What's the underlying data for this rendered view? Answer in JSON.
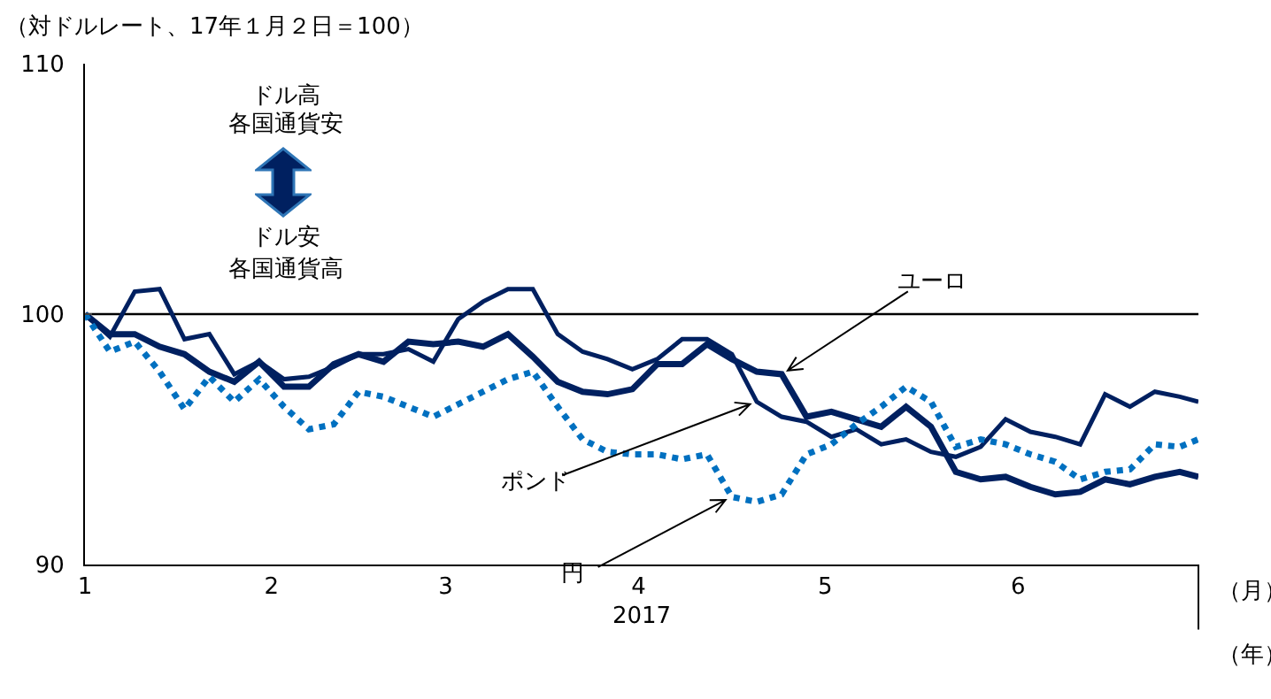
{
  "chart_data": {
    "type": "line",
    "ylabel": "（対ドルレート、17年１月２日＝100）",
    "xlabel": "2017",
    "annotations": [
      "ドル高",
      "各国通貨安",
      "ドル安",
      "各国通貨高",
      "（月）",
      "（年）"
    ],
    "x": [
      "2017-01-02",
      "2017-01-06",
      "2017-01-10",
      "2017-01-14",
      "2017-01-18",
      "2017-01-22",
      "2017-01-26",
      "2017-01-30",
      "2017-02-03",
      "2017-02-07",
      "2017-02-11",
      "2017-02-15",
      "2017-02-19",
      "2017-02-23",
      "2017-02-27",
      "2017-03-03",
      "2017-03-07",
      "2017-03-11",
      "2017-03-15",
      "2017-03-19",
      "2017-03-23",
      "2017-03-27",
      "2017-03-31",
      "2017-04-04",
      "2017-04-08",
      "2017-04-12",
      "2017-04-16",
      "2017-04-20",
      "2017-04-24",
      "2017-04-28",
      "2017-05-02",
      "2017-05-06",
      "2017-05-10",
      "2017-05-14",
      "2017-05-18",
      "2017-05-22",
      "2017-05-26",
      "2017-05-30",
      "2017-06-03",
      "2017-06-07",
      "2017-06-11",
      "2017-06-15",
      "2017-06-19",
      "2017-06-23",
      "2017-06-27",
      "2017-06-30"
    ],
    "series": [
      {
        "name": "ユーロ",
        "color": "#002060",
        "values": [
          100.0,
          99.2,
          99.2,
          98.7,
          98.4,
          97.7,
          97.3,
          98.1,
          97.1,
          97.1,
          98.0,
          98.4,
          98.1,
          98.9,
          98.8,
          98.9,
          98.7,
          99.2,
          98.3,
          97.3,
          96.9,
          96.8,
          97.0,
          98.0,
          98.0,
          98.8,
          98.2,
          97.7,
          97.6,
          95.9,
          96.1,
          95.8,
          95.5,
          96.3,
          95.5,
          93.7,
          93.4,
          93.5,
          93.1,
          92.8,
          92.9,
          93.4,
          93.2,
          93.5,
          93.7,
          93.5
        ]
      },
      {
        "name": "ポンド",
        "color": "#002060",
        "values": [
          100.0,
          99.1,
          100.9,
          101.0,
          99.0,
          99.2,
          97.6,
          98.1,
          97.4,
          97.5,
          97.9,
          98.4,
          98.4,
          98.6,
          98.1,
          99.8,
          100.5,
          101.0,
          101.0,
          99.2,
          98.5,
          98.2,
          97.8,
          98.2,
          99.0,
          99.0,
          98.4,
          96.5,
          95.9,
          95.7,
          95.1,
          95.4,
          94.8,
          95.0,
          94.5,
          94.3,
          94.7,
          95.8,
          95.3,
          95.1,
          94.8,
          96.8,
          96.3,
          96.9,
          96.7,
          96.5
        ]
      },
      {
        "name": "円",
        "color": "#0070c0",
        "line_style": "dotted",
        "values": [
          100.0,
          98.5,
          98.9,
          97.7,
          96.2,
          97.5,
          96.5,
          97.4,
          96.3,
          95.4,
          95.6,
          96.9,
          96.7,
          96.3,
          95.9,
          96.4,
          96.9,
          97.4,
          97.7,
          96.3,
          95.0,
          94.5,
          94.4,
          94.4,
          94.2,
          94.4,
          92.7,
          92.5,
          92.8,
          94.4,
          94.8,
          95.6,
          96.3,
          97.1,
          96.5,
          94.7,
          95.0,
          94.8,
          94.4,
          94.1,
          93.4,
          93.7,
          93.8,
          94.8,
          94.7,
          95.0
        ]
      }
    ],
    "line_style": "solid",
    "xlim": [
      "2017-01-02",
      "2017-06-30"
    ],
    "xticks": [
      {
        "value": "2017-01-02",
        "label": "1"
      },
      {
        "value": "2017-02-01",
        "label": "2"
      },
      {
        "value": "2017-03-01",
        "label": "3"
      },
      {
        "value": "2017-04-01",
        "label": "4"
      },
      {
        "value": "2017-05-01",
        "label": "5"
      },
      {
        "value": "2017-06-01",
        "label": "6"
      }
    ],
    "ylim": [
      90,
      110
    ],
    "yticks": [
      90,
      100,
      110
    ],
    "ref_lines": [
      {
        "axis": "y",
        "value": 100,
        "color": "#000000"
      }
    ],
    "grid": false,
    "legend": false,
    "marker": "none"
  }
}
